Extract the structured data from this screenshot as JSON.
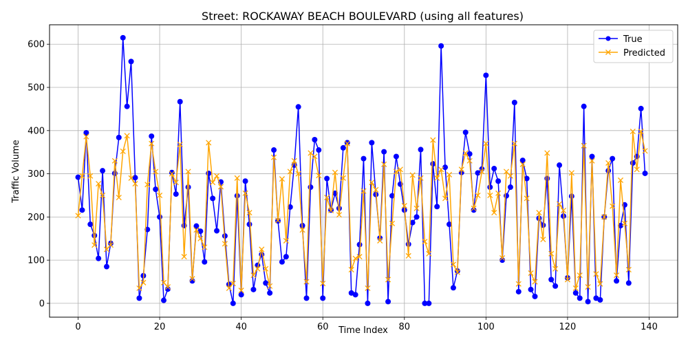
{
  "chart_data": {
    "type": "line",
    "title": "Street: ROCKAWAY BEACH BOULEVARD (using all features)",
    "xlabel": "Time Index",
    "ylabel": "Traffic Volume",
    "xlim": [
      -7,
      147
    ],
    "ylim": [
      -32,
      645
    ],
    "xticks": [
      0,
      20,
      40,
      60,
      80,
      100,
      120,
      140
    ],
    "yticks": [
      0,
      100,
      200,
      300,
      400,
      500,
      600
    ],
    "grid": true,
    "legend_position": "top-right",
    "x_start": 0,
    "series": [
      {
        "name": "True",
        "color": "#0000ff",
        "marker": "circle",
        "values": [
          292,
          216,
          395,
          183,
          157,
          104,
          307,
          85,
          139,
          301,
          384,
          615,
          456,
          560,
          291,
          12,
          64,
          171,
          387,
          264,
          200,
          7,
          33,
          303,
          253,
          467,
          180,
          269,
          52,
          179,
          167,
          96,
          301,
          243,
          168,
          281,
          156,
          44,
          0,
          249,
          20,
          283,
          183,
          32,
          88,
          113,
          47,
          24,
          355,
          191,
          96,
          108,
          223,
          320,
          455,
          180,
          12,
          269,
          379,
          355,
          12,
          289,
          216,
          255,
          220,
          360,
          372,
          24,
          20,
          136,
          335,
          0,
          372,
          252,
          151,
          351,
          4,
          249,
          340,
          276,
          216,
          137,
          187,
          200,
          356,
          0,
          0,
          323,
          224,
          596,
          315,
          183,
          36,
          75,
          303,
          396,
          346,
          216,
          302,
          311,
          528,
          269,
          312,
          283,
          100,
          249,
          269,
          465,
          27,
          331,
          289,
          32,
          16,
          197,
          181,
          289,
          55,
          40,
          320,
          202,
          59,
          248,
          24,
          12,
          456,
          4,
          340,
          12,
          8,
          200,
          307,
          335,
          52,
          180,
          228,
          47,
          325,
          340,
          451,
          301
        ]
      },
      {
        "name": "Predicted",
        "color": "#ffa500",
        "marker": "x",
        "values": [
          203,
          295,
          386,
          295,
          135,
          277,
          250,
          125,
          135,
          330,
          245,
          352,
          388,
          290,
          277,
          35,
          48,
          275,
          370,
          305,
          250,
          48,
          38,
          300,
          280,
          368,
          108,
          305,
          57,
          170,
          150,
          130,
          372,
          280,
          295,
          270,
          138,
          35,
          46,
          290,
          30,
          255,
          210,
          65,
          80,
          125,
          80,
          40,
          338,
          192,
          288,
          145,
          305,
          330,
          300,
          170,
          50,
          348,
          340,
          296,
          46,
          245,
          215,
          303,
          205,
          290,
          370,
          78,
          104,
          108,
          260,
          35,
          280,
          263,
          145,
          322,
          55,
          185,
          305,
          310,
          226,
          110,
          297,
          220,
          290,
          143,
          115,
          378,
          290,
          310,
          243,
          298,
          90,
          72,
          310,
          348,
          330,
          220,
          250,
          305,
          370,
          250,
          210,
          255,
          105,
          305,
          295,
          370,
          45,
          322,
          243,
          70,
          50,
          210,
          148,
          348,
          115,
          80,
          230,
          215,
          55,
          302,
          35,
          65,
          365,
          38,
          330,
          68,
          45,
          200,
          325,
          225,
          65,
          285,
          185,
          78,
          398,
          310,
          398,
          353
        ]
      }
    ]
  }
}
